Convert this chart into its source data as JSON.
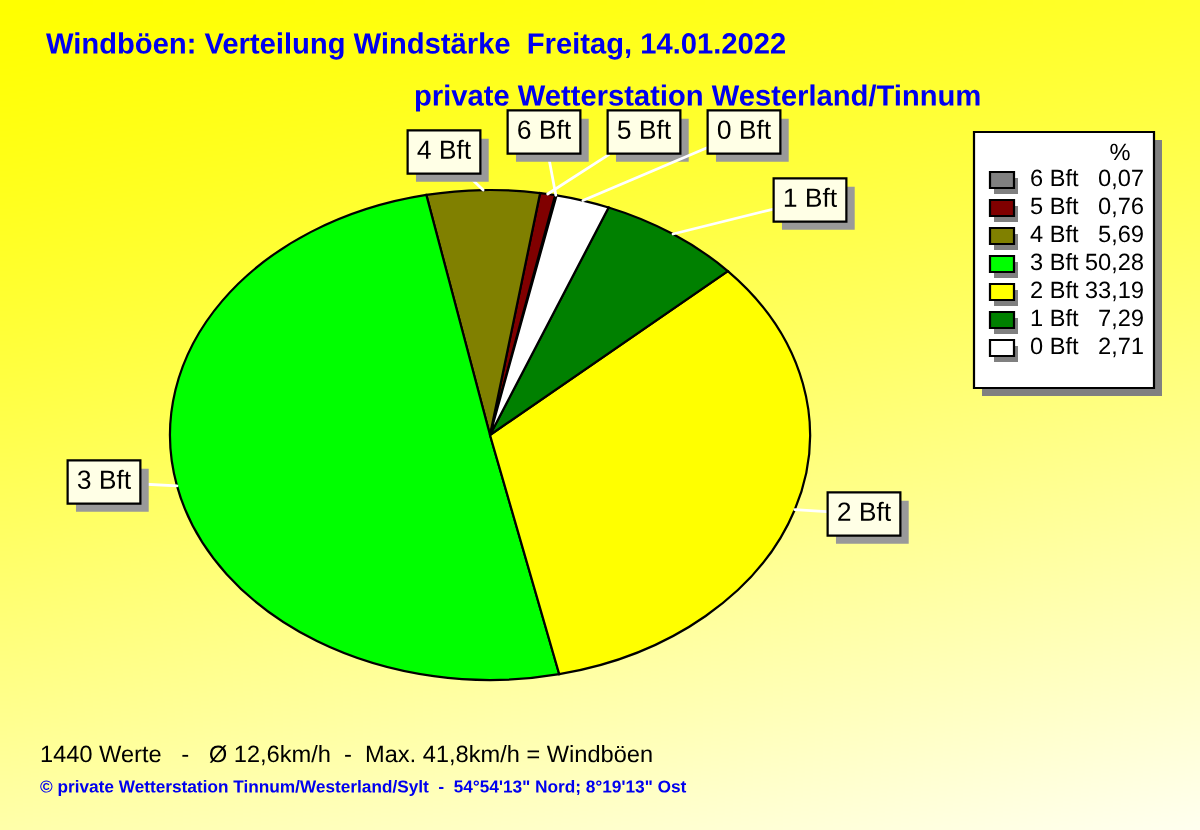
{
  "chart_data": {
    "type": "pie",
    "title": "Windböen: Verteilung Windstärke  Freitag, 14.01.2022",
    "subtitle": "private Wetterstation Westerland/Tinnum",
    "categories": [
      "6 Bft",
      "5 Bft",
      "4 Bft",
      "3 Bft",
      "2 Bft",
      "1 Bft",
      "0 Bft"
    ],
    "values": [
      0.07,
      0.76,
      5.69,
      50.28,
      33.19,
      7.29,
      2.71
    ],
    "value_labels": [
      "0,07",
      "0,76",
      "5,69",
      "50,28",
      "33,19",
      "7,29",
      "2,71"
    ],
    "colors": [
      "#808080",
      "#800000",
      "#808000",
      "#00ff00",
      "#ffff00",
      "#008000",
      "#ffffff"
    ],
    "legend": "top right",
    "legend_title": "%",
    "annotations": [
      "1440 Werte   -   Ø 12,6km/h  -  Max. 41,8km/h = Windböen",
      "© private Wetterstation Tinnum/Westerland/Sylt  -  54°54'13\" Nord; 8°19'13\" Ost"
    ]
  }
}
